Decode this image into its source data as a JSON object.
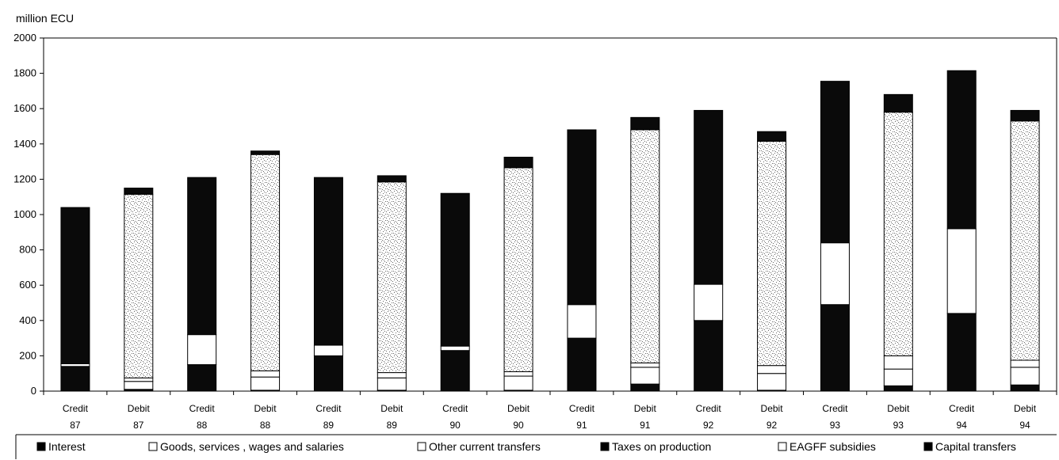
{
  "chart_data": {
    "type": "bar",
    "stacked": true,
    "unit_label": "million ECU",
    "title": "",
    "xlabel": "",
    "ylabel": "",
    "ylim": [
      0,
      2000
    ],
    "yticks": [
      0,
      200,
      400,
      600,
      800,
      1000,
      1200,
      1400,
      1600,
      1800,
      2000
    ],
    "grid": false,
    "legend_position": "bottom",
    "categories": [
      [
        "Credit",
        "87"
      ],
      [
        "Debit",
        "87"
      ],
      [
        "Credit",
        "88"
      ],
      [
        "Debit",
        "88"
      ],
      [
        "Credit",
        "89"
      ],
      [
        "Debit",
        "89"
      ],
      [
        "Credit",
        "90"
      ],
      [
        "Debit",
        "90"
      ],
      [
        "Credit",
        "91"
      ],
      [
        "Debit",
        "91"
      ],
      [
        "Credit",
        "92"
      ],
      [
        "Debit",
        "92"
      ],
      [
        "Credit",
        "93"
      ],
      [
        "Debit",
        "93"
      ],
      [
        "Credit",
        "94"
      ],
      [
        "Debit",
        "94"
      ]
    ],
    "series": [
      {
        "name": "Interest",
        "fill": "black",
        "values": [
          140,
          10,
          150,
          5,
          200,
          5,
          230,
          5,
          300,
          40,
          400,
          5,
          490,
          30,
          440,
          35
        ]
      },
      {
        "name": "Goods, services , wages and salaries",
        "fill": "white",
        "values": [
          15,
          45,
          170,
          75,
          60,
          70,
          25,
          80,
          190,
          95,
          205,
          95,
          350,
          95,
          480,
          100
        ]
      },
      {
        "name": "Other current transfers",
        "fill": "white",
        "values": [
          0,
          20,
          0,
          35,
          0,
          30,
          0,
          25,
          0,
          25,
          0,
          45,
          0,
          75,
          0,
          40
        ]
      },
      {
        "name": "Taxes on production",
        "fill": "black",
        "values": [
          885,
          0,
          890,
          0,
          950,
          0,
          865,
          0,
          990,
          0,
          985,
          0,
          915,
          0,
          895,
          0
        ]
      },
      {
        "name": "EAGFF subsidies",
        "fill": "speckle",
        "values": [
          0,
          1040,
          0,
          1225,
          0,
          1080,
          0,
          1155,
          0,
          1320,
          0,
          1270,
          0,
          1380,
          0,
          1355
        ]
      },
      {
        "name": "Capital transfers",
        "fill": "black",
        "values": [
          0,
          35,
          0,
          20,
          0,
          35,
          0,
          60,
          0,
          70,
          0,
          55,
          0,
          100,
          0,
          60
        ]
      }
    ],
    "colors": {
      "black": "#0a0a0a",
      "white": "#ffffff",
      "speckle": "#666666"
    }
  }
}
